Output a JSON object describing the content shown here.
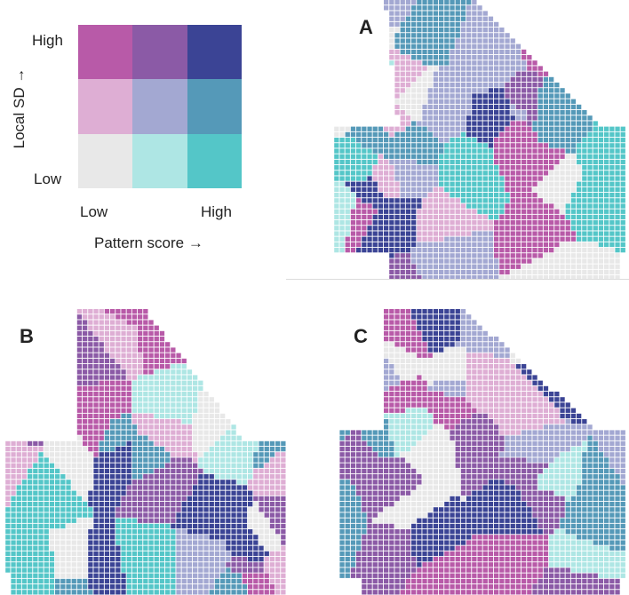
{
  "legend": {
    "y_axis_label": "Local SD →",
    "y_high": "High",
    "y_low": "Low",
    "x_axis_label": "Pattern score →",
    "x_low": "Low",
    "x_high": "High",
    "palette": [
      [
        "#b85aa8",
        "#8b5aa6",
        "#3b4495"
      ],
      [
        "#deaed4",
        "#a3a8d2",
        "#5599b8"
      ],
      [
        "#e8e8e8",
        "#aee6e4",
        "#54c6c8"
      ]
    ]
  },
  "panels": [
    {
      "label": "A"
    },
    {
      "label": "B"
    },
    {
      "label": "C"
    }
  ]
}
